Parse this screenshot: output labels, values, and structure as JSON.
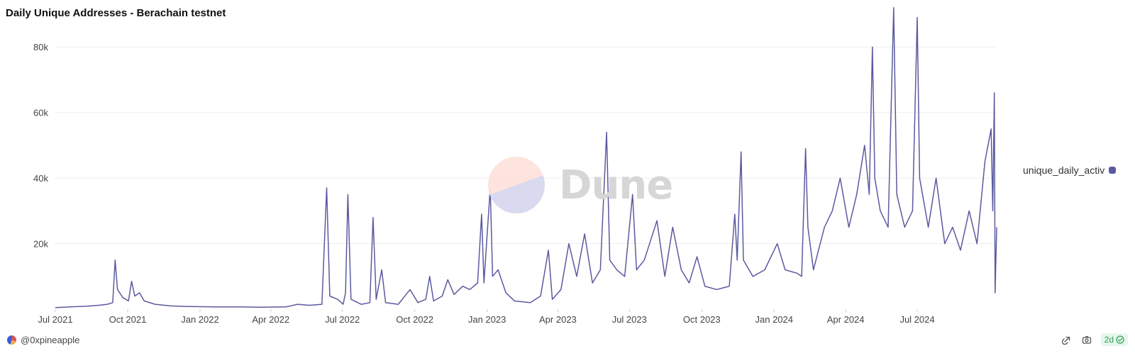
{
  "header": {
    "title": "Daily Unique Addresses - Berachain testnet"
  },
  "footer": {
    "author": "@0xpineapple",
    "age_badge": "2d"
  },
  "watermark": {
    "text": "Dune"
  },
  "icons": {
    "share": "share-icon",
    "camera": "camera-icon",
    "check": "check-circle-icon"
  },
  "colors": {
    "series": "#5b5aa0",
    "gridline": "#eeeeee",
    "badge_green": "#2f9e5a"
  },
  "chart_data": {
    "type": "line",
    "title": "Daily Unique Addresses - Berachain testnet",
    "xlabel": "",
    "ylabel": "",
    "x_range": [
      "2021-07-01",
      "2024-10-10"
    ],
    "ylim": [
      0,
      90000
    ],
    "grid": true,
    "legend_position": "right",
    "x_ticks": [
      "Jul 2021",
      "Oct 2021",
      "Jan 2022",
      "Apr 2022",
      "Jul 2022",
      "Oct 2022",
      "Jan 2023",
      "Apr 2023",
      "Jul 2023",
      "Oct 2023",
      "Jan 2024",
      "Apr 2024",
      "Jul 2024"
    ],
    "y_ticks": [
      {
        "value": 20000,
        "label": "20k"
      },
      {
        "value": 40000,
        "label": "40k"
      },
      {
        "value": 60000,
        "label": "60k"
      },
      {
        "value": 80000,
        "label": "80k"
      }
    ],
    "series": [
      {
        "name": "unique_daily_activ",
        "color": "#5b5aa0",
        "points": [
          [
            "2021-07-01",
            500
          ],
          [
            "2021-07-20",
            700
          ],
          [
            "2021-08-10",
            900
          ],
          [
            "2021-08-25",
            1200
          ],
          [
            "2021-09-05",
            1500
          ],
          [
            "2021-09-12",
            2000
          ],
          [
            "2021-09-15",
            15000
          ],
          [
            "2021-09-18",
            6000
          ],
          [
            "2021-09-25",
            3500
          ],
          [
            "2021-10-02",
            2500
          ],
          [
            "2021-10-06",
            8500
          ],
          [
            "2021-10-10",
            4000
          ],
          [
            "2021-10-16",
            5000
          ],
          [
            "2021-10-22",
            2500
          ],
          [
            "2021-11-05",
            1500
          ],
          [
            "2021-11-25",
            1000
          ],
          [
            "2021-12-20",
            800
          ],
          [
            "2022-01-20",
            700
          ],
          [
            "2022-02-20",
            700
          ],
          [
            "2022-03-20",
            600
          ],
          [
            "2022-04-20",
            700
          ],
          [
            "2022-05-05",
            1500
          ],
          [
            "2022-05-20",
            1200
          ],
          [
            "2022-06-05",
            1500
          ],
          [
            "2022-06-11",
            37000
          ],
          [
            "2022-06-15",
            4000
          ],
          [
            "2022-06-25",
            3000
          ],
          [
            "2022-07-02",
            1500
          ],
          [
            "2022-07-05",
            5000
          ],
          [
            "2022-07-08",
            35000
          ],
          [
            "2022-07-12",
            3000
          ],
          [
            "2022-07-25",
            1500
          ],
          [
            "2022-08-05",
            2000
          ],
          [
            "2022-08-09",
            28000
          ],
          [
            "2022-08-13",
            3000
          ],
          [
            "2022-08-20",
            12000
          ],
          [
            "2022-08-25",
            2000
          ],
          [
            "2022-09-10",
            1500
          ],
          [
            "2022-09-25",
            6000
          ],
          [
            "2022-10-05",
            2000
          ],
          [
            "2022-10-15",
            3000
          ],
          [
            "2022-10-20",
            10000
          ],
          [
            "2022-10-25",
            2500
          ],
          [
            "2022-11-05",
            4000
          ],
          [
            "2022-11-12",
            9000
          ],
          [
            "2022-11-20",
            4500
          ],
          [
            "2022-12-01",
            7000
          ],
          [
            "2022-12-10",
            6000
          ],
          [
            "2022-12-20",
            8000
          ],
          [
            "2022-12-25",
            29000
          ],
          [
            "2022-12-28",
            8000
          ],
          [
            "2023-01-05",
            37000
          ],
          [
            "2023-01-08",
            10000
          ],
          [
            "2023-01-15",
            12000
          ],
          [
            "2023-01-25",
            5000
          ],
          [
            "2023-02-05",
            2500
          ],
          [
            "2023-02-25",
            2000
          ],
          [
            "2023-03-10",
            4000
          ],
          [
            "2023-03-20",
            18000
          ],
          [
            "2023-03-25",
            3000
          ],
          [
            "2023-04-05",
            6000
          ],
          [
            "2023-04-15",
            20000
          ],
          [
            "2023-04-25",
            10000
          ],
          [
            "2023-05-05",
            23000
          ],
          [
            "2023-05-15",
            8000
          ],
          [
            "2023-05-25",
            12000
          ],
          [
            "2023-06-02",
            54000
          ],
          [
            "2023-06-06",
            15000
          ],
          [
            "2023-06-15",
            12000
          ],
          [
            "2023-06-25",
            10000
          ],
          [
            "2023-07-05",
            35000
          ],
          [
            "2023-07-10",
            12000
          ],
          [
            "2023-07-20",
            15000
          ],
          [
            "2023-08-05",
            27000
          ],
          [
            "2023-08-15",
            10000
          ],
          [
            "2023-08-25",
            25000
          ],
          [
            "2023-09-05",
            12000
          ],
          [
            "2023-09-15",
            8000
          ],
          [
            "2023-09-25",
            16000
          ],
          [
            "2023-10-05",
            7000
          ],
          [
            "2023-10-20",
            6000
          ],
          [
            "2023-11-05",
            7000
          ],
          [
            "2023-11-12",
            29000
          ],
          [
            "2023-11-15",
            15000
          ],
          [
            "2023-11-20",
            48000
          ],
          [
            "2023-11-23",
            15000
          ],
          [
            "2023-12-05",
            10000
          ],
          [
            "2023-12-20",
            12000
          ],
          [
            "2024-01-05",
            20000
          ],
          [
            "2024-01-15",
            12000
          ],
          [
            "2024-01-30",
            11000
          ],
          [
            "2024-02-05",
            10000
          ],
          [
            "2024-02-10",
            49000
          ],
          [
            "2024-02-13",
            25000
          ],
          [
            "2024-02-20",
            12000
          ],
          [
            "2024-03-05",
            25000
          ],
          [
            "2024-03-15",
            30000
          ],
          [
            "2024-03-25",
            40000
          ],
          [
            "2024-04-05",
            25000
          ],
          [
            "2024-04-15",
            35000
          ],
          [
            "2024-04-25",
            50000
          ],
          [
            "2024-05-01",
            35000
          ],
          [
            "2024-05-05",
            80000
          ],
          [
            "2024-05-08",
            40000
          ],
          [
            "2024-05-15",
            30000
          ],
          [
            "2024-05-25",
            25000
          ],
          [
            "2024-06-01",
            92000
          ],
          [
            "2024-06-05",
            35000
          ],
          [
            "2024-06-15",
            25000
          ],
          [
            "2024-06-25",
            30000
          ],
          [
            "2024-07-01",
            89000
          ],
          [
            "2024-07-04",
            40000
          ],
          [
            "2024-07-15",
            25000
          ],
          [
            "2024-07-25",
            40000
          ],
          [
            "2024-08-05",
            20000
          ],
          [
            "2024-08-15",
            25000
          ],
          [
            "2024-08-25",
            18000
          ],
          [
            "2024-09-05",
            30000
          ],
          [
            "2024-09-15",
            20000
          ],
          [
            "2024-09-25",
            45000
          ],
          [
            "2024-10-03",
            55000
          ],
          [
            "2024-10-05",
            30000
          ],
          [
            "2024-10-07",
            66000
          ],
          [
            "2024-10-08",
            5000
          ],
          [
            "2024-10-10",
            25000
          ]
        ]
      }
    ]
  }
}
